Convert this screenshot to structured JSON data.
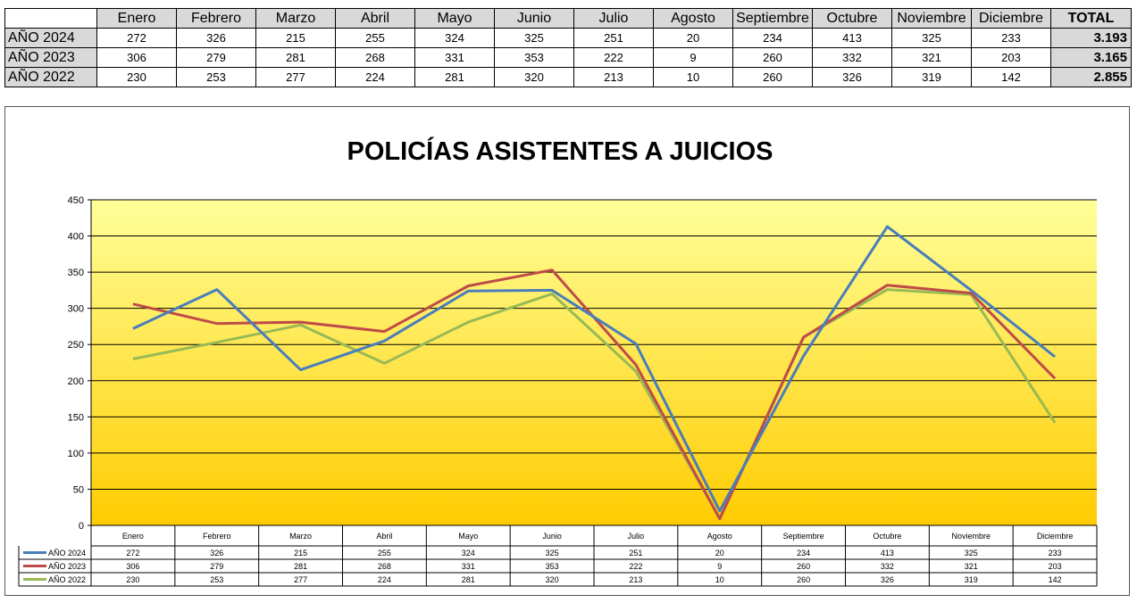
{
  "table": {
    "columns": [
      "Enero",
      "Febrero",
      "Marzo",
      "Abril",
      "Mayo",
      "Junio",
      "Julio",
      "Agosto",
      "Septiembre",
      "Octubre",
      "Noviembre",
      "Diciembre"
    ],
    "total_header": "TOTAL",
    "rows": [
      {
        "label": "AÑO 2024",
        "values": [
          "272",
          "326",
          "215",
          "255",
          "324",
          "325",
          "251",
          "20",
          "234",
          "413",
          "325",
          "233"
        ],
        "total": "3.193"
      },
      {
        "label": "AÑO 2023",
        "values": [
          "306",
          "279",
          "281",
          "268",
          "331",
          "353",
          "222",
          "9",
          "260",
          "332",
          "321",
          "203"
        ],
        "total": "3.165"
      },
      {
        "label": "AÑO 2022",
        "values": [
          "230",
          "253",
          "277",
          "224",
          "281",
          "320",
          "213",
          "10",
          "260",
          "326",
          "319",
          "142"
        ],
        "total": "2.855"
      }
    ]
  },
  "chart_data": {
    "type": "line",
    "title": "POLICÍAS ASISTENTES A JUICIOS",
    "categories": [
      "Enero",
      "Febrero",
      "Marzo",
      "Abril",
      "Mayo",
      "Junio",
      "Julio",
      "Agosto",
      "Septiembre",
      "Octubre",
      "Noviembre",
      "Diciembre"
    ],
    "series": [
      {
        "name": "AÑO 2024",
        "color": "#4a7ebb",
        "values": [
          272,
          326,
          215,
          255,
          324,
          325,
          251,
          20,
          234,
          413,
          325,
          233
        ]
      },
      {
        "name": "AÑO 2023",
        "color": "#be4b48",
        "values": [
          306,
          279,
          281,
          268,
          331,
          353,
          222,
          9,
          260,
          332,
          321,
          203
        ]
      },
      {
        "name": "AÑO 2022",
        "color": "#98b954",
        "values": [
          230,
          253,
          277,
          224,
          281,
          320,
          213,
          10,
          260,
          326,
          319,
          142
        ]
      }
    ],
    "ylim": [
      0,
      450
    ],
    "yticks": [
      0,
      50,
      100,
      150,
      200,
      250,
      300,
      350,
      400,
      450
    ],
    "grid": true,
    "legend": "data-table-below",
    "background_gradient": [
      "#ffff99",
      "#ffcc00"
    ]
  }
}
